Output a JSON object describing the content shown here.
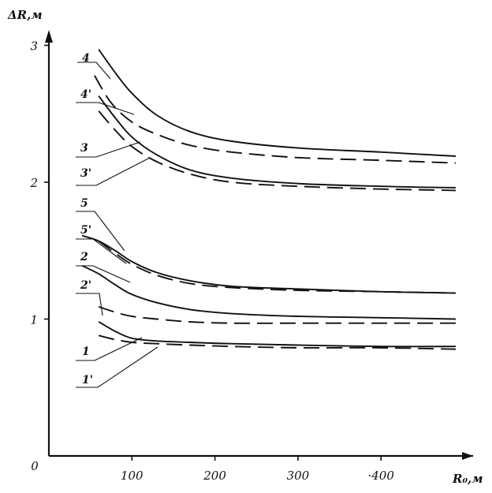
{
  "chart_data": {
    "type": "line",
    "xlabel": "R₀,м",
    "ylabel": "ΔR,м",
    "xlim": [
      0,
      510
    ],
    "ylim": [
      0,
      3.1
    ],
    "origin_label": "0",
    "x_ticks": [
      100,
      200,
      300,
      400
    ],
    "x_tick_labels": [
      "100",
      "200",
      "300",
      "·400"
    ],
    "y_ticks": [
      1,
      2,
      3
    ],
    "y_tick_labels": [
      "1",
      "2",
      "3"
    ],
    "grid": false,
    "series": [
      {
        "name": "4",
        "style": "solid",
        "x": [
          60,
          80,
          100,
          130,
          170,
          220,
          300,
          400,
          490
        ],
        "y": [
          2.97,
          2.8,
          2.65,
          2.49,
          2.37,
          2.3,
          2.25,
          2.22,
          2.19
        ]
      },
      {
        "name": "4'",
        "style": "dashed",
        "x": [
          55,
          75,
          100,
          130,
          170,
          220,
          300,
          400,
          490
        ],
        "y": [
          2.78,
          2.58,
          2.44,
          2.35,
          2.27,
          2.22,
          2.18,
          2.16,
          2.14
        ]
      },
      {
        "name": "3",
        "style": "solid",
        "x": [
          60,
          80,
          100,
          130,
          170,
          220,
          300,
          400,
          490
        ],
        "y": [
          2.63,
          2.47,
          2.33,
          2.2,
          2.09,
          2.03,
          1.99,
          1.97,
          1.96
        ]
      },
      {
        "name": "3'",
        "style": "dashed",
        "x": [
          60,
          80,
          100,
          130,
          170,
          220,
          300,
          400,
          490
        ],
        "y": [
          2.52,
          2.38,
          2.26,
          2.15,
          2.06,
          2.0,
          1.97,
          1.95,
          1.94
        ]
      },
      {
        "name": "5",
        "style": "solid",
        "x": [
          40,
          60,
          80,
          100,
          130,
          170,
          220,
          300,
          400,
          490
        ],
        "y": [
          1.61,
          1.57,
          1.5,
          1.42,
          1.34,
          1.28,
          1.24,
          1.22,
          1.2,
          1.19
        ]
      },
      {
        "name": "5'",
        "style": "dashed",
        "x": [
          60,
          80,
          100,
          130,
          170,
          220,
          300,
          400,
          490
        ],
        "y": [
          1.57,
          1.48,
          1.4,
          1.32,
          1.26,
          1.23,
          1.21,
          1.2,
          1.19
        ]
      },
      {
        "name": "2",
        "style": "solid",
        "x": [
          40,
          60,
          80,
          100,
          130,
          170,
          220,
          300,
          400,
          490
        ],
        "y": [
          1.39,
          1.33,
          1.25,
          1.18,
          1.12,
          1.07,
          1.04,
          1.02,
          1.01,
          1.0
        ]
      },
      {
        "name": "2'",
        "style": "dashed",
        "x": [
          60,
          80,
          100,
          130,
          170,
          220,
          300,
          400,
          490
        ],
        "y": [
          1.09,
          1.05,
          1.02,
          1.0,
          0.98,
          0.97,
          0.97,
          0.97,
          0.97
        ]
      },
      {
        "name": "1",
        "style": "solid",
        "x": [
          60,
          80,
          100,
          130,
          170,
          220,
          300,
          400,
          490
        ],
        "y": [
          0.98,
          0.91,
          0.86,
          0.84,
          0.83,
          0.82,
          0.81,
          0.8,
          0.8
        ]
      },
      {
        "name": "1'",
        "style": "dashed",
        "x": [
          60,
          80,
          100,
          130,
          170,
          220,
          300,
          400,
          490
        ],
        "y": [
          0.88,
          0.85,
          0.83,
          0.82,
          0.81,
          0.8,
          0.79,
          0.79,
          0.78
        ]
      }
    ]
  }
}
